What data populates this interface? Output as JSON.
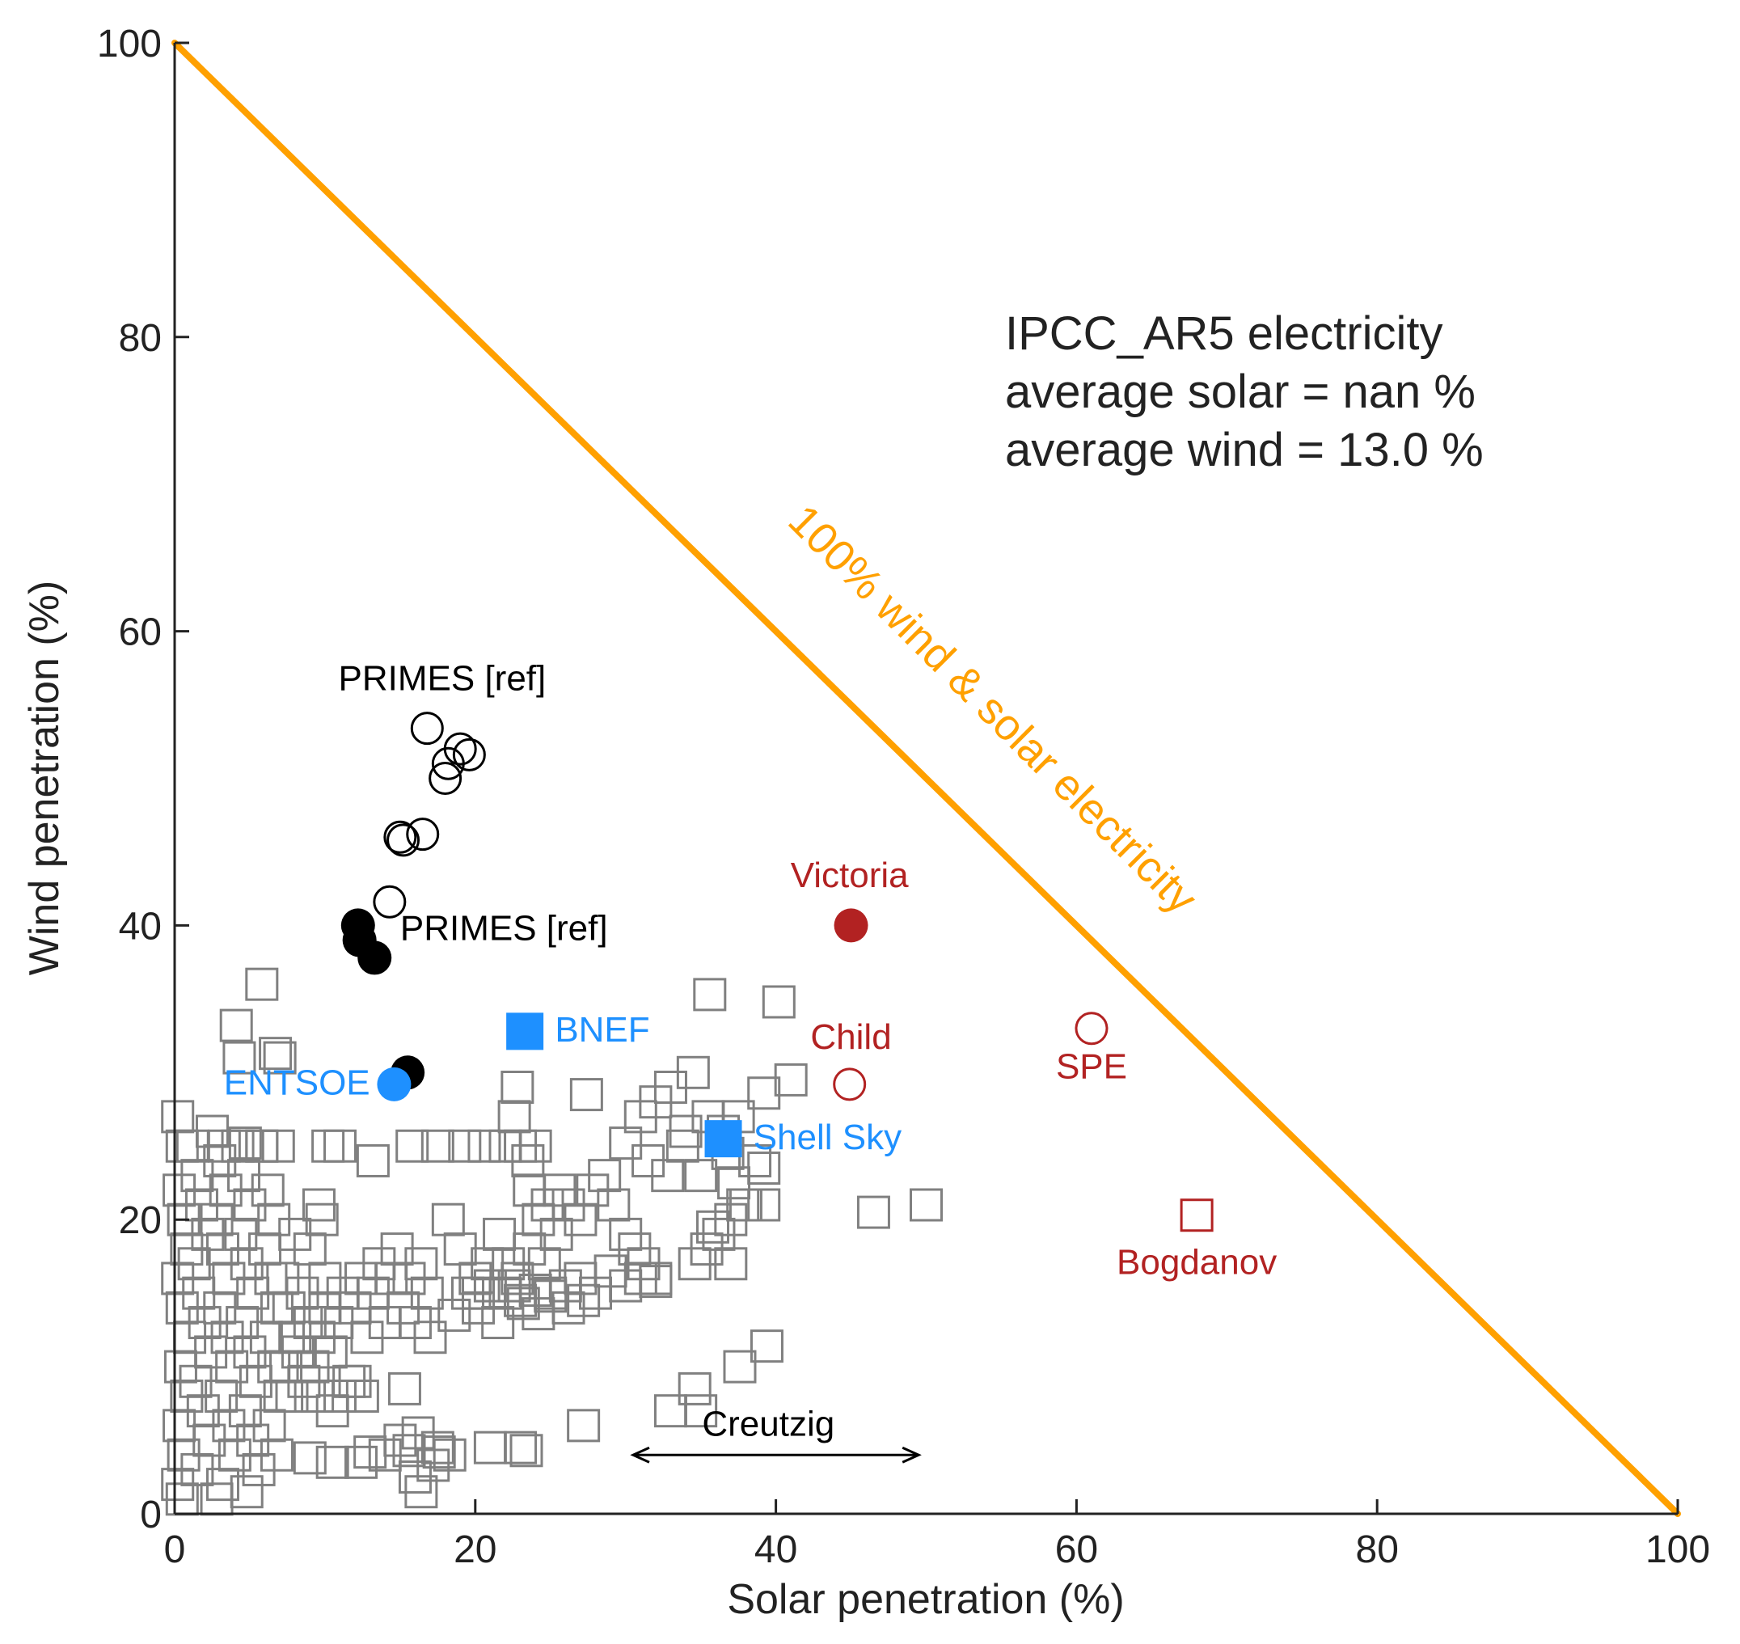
{
  "chart_data": {
    "type": "scatter",
    "xlabel": "Solar penetration (%)",
    "ylabel": "Wind penetration (%)",
    "xlim": [
      0,
      100
    ],
    "ylim": [
      0,
      100
    ],
    "xticks": [
      "0",
      "20",
      "40",
      "60",
      "80",
      "100"
    ],
    "yticks": [
      "0",
      "20",
      "40",
      "60",
      "80",
      "100"
    ],
    "grid": false,
    "stats_text": [
      "IPCC_AR5 electricity",
      "average solar = nan %",
      "average wind = 13.0 %"
    ],
    "line_label": "100% wind & solar electricity",
    "colors": {
      "orange": "#FFA000",
      "gray": "#808080",
      "red": "#B22222",
      "blue": "#1E90FF",
      "black": "#000000"
    },
    "series": [
      {
        "marker": "open-square",
        "color": "#808080",
        "points": [
          [
            0.2,
            27
          ],
          [
            0.5,
            25
          ],
          [
            0.3,
            22
          ],
          [
            0.6,
            20
          ],
          [
            0.8,
            18
          ],
          [
            0.2,
            16
          ],
          [
            0.5,
            14
          ],
          [
            1,
            12
          ],
          [
            0.4,
            10
          ],
          [
            0.8,
            8
          ],
          [
            0.3,
            6
          ],
          [
            0.6,
            4
          ],
          [
            0.2,
            2
          ],
          [
            0.5,
            1
          ],
          [
            1.2,
            25
          ],
          [
            1.5,
            23
          ],
          [
            1.8,
            21
          ],
          [
            2.2,
            19
          ],
          [
            1.3,
            17
          ],
          [
            1.6,
            15
          ],
          [
            2,
            13
          ],
          [
            2.4,
            11
          ],
          [
            1.4,
            9
          ],
          [
            1.9,
            7
          ],
          [
            2.3,
            5
          ],
          [
            1.5,
            3
          ],
          [
            2.8,
            1
          ],
          [
            2.5,
            26
          ],
          [
            3,
            24
          ],
          [
            3.4,
            22
          ],
          [
            2.8,
            20
          ],
          [
            3.2,
            18
          ],
          [
            3.6,
            16
          ],
          [
            3,
            14
          ],
          [
            3.5,
            12
          ],
          [
            3.8,
            10
          ],
          [
            3.1,
            8
          ],
          [
            3.6,
            6
          ],
          [
            4,
            4
          ],
          [
            3.2,
            2
          ],
          [
            4.2,
            25
          ],
          [
            4.6,
            23
          ],
          [
            5,
            21
          ],
          [
            4.4,
            19
          ],
          [
            4.8,
            17
          ],
          [
            5.2,
            15
          ],
          [
            4.5,
            13
          ],
          [
            5,
            11
          ],
          [
            5.4,
            9
          ],
          [
            4.7,
            7
          ],
          [
            5.2,
            5
          ],
          [
            5.6,
            3
          ],
          [
            4.8,
            1.5
          ],
          [
            5.8,
            25
          ],
          [
            6.2,
            22
          ],
          [
            6.6,
            20
          ],
          [
            6,
            18
          ],
          [
            6.4,
            16
          ],
          [
            6.8,
            14
          ],
          [
            6.1,
            12
          ],
          [
            6.6,
            10
          ],
          [
            7,
            8
          ],
          [
            6.3,
            6
          ],
          [
            6.8,
            4
          ],
          [
            7.2,
            16
          ],
          [
            7.6,
            14
          ],
          [
            8,
            12
          ],
          [
            7.4,
            10
          ],
          [
            7.8,
            8
          ],
          [
            8.2,
            11
          ],
          [
            8.6,
            9
          ],
          [
            9,
            13
          ],
          [
            8.5,
            15
          ],
          [
            9.2,
            10
          ],
          [
            9.6,
            12
          ],
          [
            10,
            14
          ],
          [
            10.4,
            11
          ],
          [
            10.8,
            13
          ],
          [
            11.2,
            15
          ],
          [
            11.6,
            9
          ],
          [
            12,
            14
          ],
          [
            12.4,
            16
          ],
          [
            12.8,
            12
          ],
          [
            13.2,
            15
          ],
          [
            13.6,
            17
          ],
          [
            14,
            13
          ],
          [
            14.4,
            16
          ],
          [
            14.8,
            18
          ],
          [
            15.2,
            14
          ],
          [
            15.6,
            16
          ],
          [
            16,
            13
          ],
          [
            16.4,
            17
          ],
          [
            16.8,
            15
          ],
          [
            9.6,
            21
          ],
          [
            8,
            19
          ],
          [
            10,
            16
          ],
          [
            9,
            18
          ],
          [
            9.8,
            20
          ],
          [
            9.5,
            8
          ],
          [
            10.5,
            7
          ],
          [
            11,
            8
          ],
          [
            12,
            9
          ],
          [
            12.5,
            8
          ],
          [
            5.8,
            36
          ],
          [
            4.1,
            33.2
          ],
          [
            4.3,
            31
          ],
          [
            6.7,
            31.3
          ],
          [
            7,
            31
          ],
          [
            3.3,
            25
          ],
          [
            4.7,
            25.2
          ],
          [
            5.8,
            25
          ],
          [
            6.9,
            25
          ],
          [
            10.2,
            25
          ],
          [
            11,
            25
          ],
          [
            13.2,
            24
          ],
          [
            15.8,
            25
          ],
          [
            17.5,
            25
          ],
          [
            19.3,
            25
          ],
          [
            20.6,
            25
          ],
          [
            22,
            25
          ],
          [
            23,
            25
          ],
          [
            24,
            25
          ],
          [
            22.8,
            29
          ],
          [
            23.6,
            22
          ],
          [
            24.2,
            20
          ],
          [
            22.6,
            27
          ],
          [
            23.5,
            24
          ],
          [
            24.8,
            21
          ],
          [
            25.6,
            22
          ],
          [
            18.2,
            20
          ],
          [
            19,
            18
          ],
          [
            20,
            16
          ],
          [
            20.8,
            17
          ],
          [
            21.6,
            19
          ],
          [
            22.2,
            17
          ],
          [
            22.8,
            16
          ],
          [
            23.6,
            18
          ],
          [
            24.6,
            17
          ],
          [
            25.4,
            19
          ],
          [
            26.2,
            21
          ],
          [
            27,
            20
          ],
          [
            27.8,
            22
          ],
          [
            28.6,
            23
          ],
          [
            29.2,
            21
          ],
          [
            30,
            19
          ],
          [
            30.6,
            18
          ],
          [
            31.2,
            17
          ],
          [
            32,
            16
          ],
          [
            18.6,
            13.5
          ],
          [
            20.2,
            15
          ],
          [
            21,
            15.5
          ],
          [
            22,
            15
          ],
          [
            23,
            14.5
          ],
          [
            24,
            15.2
          ],
          [
            25,
            14.8
          ],
          [
            26,
            15.5
          ],
          [
            27,
            16
          ],
          [
            28,
            15
          ],
          [
            29,
            16.5
          ],
          [
            30,
            15.5
          ],
          [
            31,
            16
          ],
          [
            32,
            15.8
          ],
          [
            34.6,
            17
          ],
          [
            35.4,
            18
          ],
          [
            36.2,
            19
          ],
          [
            37,
            20
          ],
          [
            37.8,
            21
          ],
          [
            35.8,
            19.5
          ],
          [
            37.2,
            22.5
          ],
          [
            38,
            21
          ],
          [
            38.6,
            24
          ],
          [
            39.2,
            23.5
          ],
          [
            34.5,
            30
          ],
          [
            35.5,
            27
          ],
          [
            36.5,
            26
          ],
          [
            37.5,
            27
          ],
          [
            34,
            26
          ],
          [
            33,
            29
          ],
          [
            32,
            28
          ],
          [
            31,
            27
          ],
          [
            33.8,
            25
          ],
          [
            27.4,
            28.5
          ],
          [
            30,
            25.2
          ],
          [
            31.5,
            24
          ],
          [
            32.8,
            23
          ],
          [
            35,
            23
          ],
          [
            36.8,
            24.5
          ],
          [
            35.6,
            35.3
          ],
          [
            40.2,
            34.8
          ],
          [
            39.2,
            28.6
          ],
          [
            41,
            29.5
          ],
          [
            39.2,
            21
          ],
          [
            46.5,
            20.5
          ],
          [
            50,
            21
          ],
          [
            37,
            17
          ],
          [
            17,
            12
          ],
          [
            19.5,
            15
          ],
          [
            20.2,
            14
          ],
          [
            21.5,
            13
          ],
          [
            22.6,
            15.5
          ],
          [
            23.2,
            14.3
          ],
          [
            24.2,
            13.6
          ],
          [
            25,
            15
          ],
          [
            26.2,
            14
          ],
          [
            27.2,
            14.5
          ],
          [
            15.3,
            8.5
          ],
          [
            15,
            5
          ],
          [
            15.6,
            4.3
          ],
          [
            16.2,
            5.5
          ],
          [
            17.5,
            4.5
          ],
          [
            17.2,
            3.3
          ],
          [
            18.3,
            4
          ],
          [
            21,
            4.5
          ],
          [
            23,
            4.5
          ],
          [
            23.4,
            4.3
          ],
          [
            16,
            2.5
          ],
          [
            16.4,
            1.5
          ],
          [
            17.6,
            4.2
          ],
          [
            12.4,
            3.5
          ],
          [
            13,
            4.2
          ],
          [
            14,
            4
          ],
          [
            10.5,
            3.5
          ],
          [
            9,
            3.8
          ],
          [
            27.2,
            6
          ],
          [
            33,
            7
          ],
          [
            34.6,
            8.5
          ],
          [
            35,
            7
          ],
          [
            37.6,
            10
          ],
          [
            39.4,
            11.4
          ]
        ]
      },
      {
        "marker": "open-circle",
        "color": "#000000",
        "points": [
          [
            16.8,
            53.4
          ],
          [
            18.2,
            51
          ],
          [
            19,
            52
          ],
          [
            19.6,
            51.6
          ],
          [
            18,
            50
          ],
          [
            15,
            46
          ],
          [
            15.2,
            45.8
          ],
          [
            16.5,
            46.2
          ],
          [
            14.3,
            41.6
          ]
        ]
      },
      {
        "marker": "filled-circle",
        "color": "#000000",
        "points": [
          [
            12.2,
            40
          ],
          [
            12.3,
            39
          ],
          [
            13.3,
            37.8
          ],
          [
            15.5,
            30
          ]
        ]
      },
      {
        "name": "ENTSOE",
        "marker": "filled-circle",
        "color": "#1E90FF",
        "points": [
          [
            14.6,
            29.2
          ]
        ]
      },
      {
        "name": "BNEF",
        "marker": "filled-square",
        "color": "#1E90FF",
        "points": [
          [
            23.3,
            32.8
          ]
        ]
      },
      {
        "name": "Shell Sky",
        "marker": "filled-square",
        "color": "#1E90FF",
        "points": [
          [
            36.5,
            25.5
          ]
        ]
      },
      {
        "name": "Victoria",
        "marker": "filled-circle",
        "color": "#B22222",
        "points": [
          [
            45,
            40
          ]
        ]
      },
      {
        "name": "Child",
        "marker": "open-circle",
        "color": "#B22222",
        "points": [
          [
            44.9,
            29.2
          ]
        ]
      },
      {
        "name": "SPE",
        "marker": "open-circle",
        "color": "#B22222",
        "points": [
          [
            61,
            33
          ]
        ]
      },
      {
        "name": "Bogdanov",
        "marker": "open-square",
        "color": "#B22222",
        "points": [
          [
            68,
            20.3
          ]
        ]
      }
    ],
    "annotations": [
      {
        "text": "PRIMES [ref]",
        "x": 17.8,
        "y": 56,
        "color": "#000000",
        "anchor": "middle"
      },
      {
        "text": "PRIMES [ref]",
        "x": 15,
        "y": 39,
        "color": "#000000",
        "anchor": "start"
      },
      {
        "text": "ENTSOE",
        "x": 13,
        "y": 28.5,
        "color": "#1E90FF",
        "anchor": "end"
      },
      {
        "text": "BNEF",
        "x": 25.3,
        "y": 32.1,
        "color": "#1E90FF",
        "anchor": "start"
      },
      {
        "text": "Shell Sky",
        "x": 38.5,
        "y": 24.8,
        "color": "#1E90FF",
        "anchor": "start"
      },
      {
        "text": "Victoria",
        "x": 44.9,
        "y": 42.6,
        "color": "#B22222",
        "anchor": "middle"
      },
      {
        "text": "Child",
        "x": 45,
        "y": 31.6,
        "color": "#B22222",
        "anchor": "middle"
      },
      {
        "text": "SPE",
        "x": 61,
        "y": 29.6,
        "color": "#B22222",
        "anchor": "middle"
      },
      {
        "text": "Bogdanov",
        "x": 68,
        "y": 16.3,
        "color": "#B22222",
        "anchor": "middle"
      },
      {
        "text": "Creutzig",
        "x": 39.5,
        "y": 5.3,
        "color": "#000000",
        "anchor": "middle"
      }
    ],
    "range_arrow": {
      "x1": 30.5,
      "x2": 49.5,
      "y": 4
    },
    "diagonal": [
      [
        0,
        100
      ],
      [
        100,
        0
      ]
    ]
  }
}
